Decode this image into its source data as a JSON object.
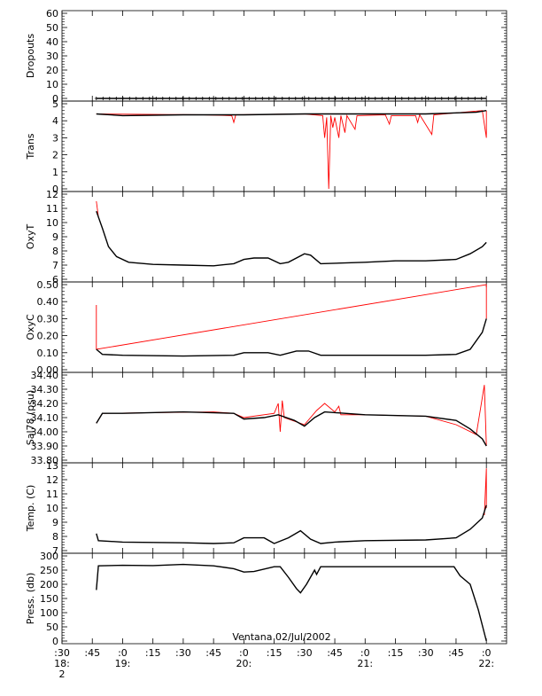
{
  "chart_data": {
    "type": "line",
    "title": "Ventana 02/Jul/2002",
    "time_axis": {
      "start": "18:30",
      "end": "22:10",
      "tick_labels": [
        {
          "t": "18:30",
          "l1": ":30",
          "l2": "18:",
          "l3": "2"
        },
        {
          "t": "18:45",
          "l1": ":45",
          "l2": "",
          "l3": ""
        },
        {
          "t": "19:00",
          "l1": ":0",
          "l2": "19:",
          "l3": ""
        },
        {
          "t": "19:15",
          "l1": ":15",
          "l2": "",
          "l3": ""
        },
        {
          "t": "19:30",
          "l1": ":30",
          "l2": "",
          "l3": ""
        },
        {
          "t": "19:45",
          "l1": ":45",
          "l2": "",
          "l3": ""
        },
        {
          "t": "20:00",
          "l1": ":0",
          "l2": "20:",
          "l3": ""
        },
        {
          "t": "20:15",
          "l1": ":15",
          "l2": "",
          "l3": ""
        },
        {
          "t": "20:30",
          "l1": ":30",
          "l2": "",
          "l3": ""
        },
        {
          "t": "20:45",
          "l1": ":45",
          "l2": "",
          "l3": ""
        },
        {
          "t": "21:00",
          "l1": ":0",
          "l2": "21:",
          "l3": ""
        },
        {
          "t": "21:15",
          "l1": ":15",
          "l2": "",
          "l3": ""
        },
        {
          "t": "21:30",
          "l1": ":30",
          "l2": "",
          "l3": ""
        },
        {
          "t": "21:45",
          "l1": ":45",
          "l2": "",
          "l3": ""
        },
        {
          "t": "22:00",
          "l1": ":0",
          "l2": "22:",
          "l3": ""
        }
      ]
    },
    "panels": [
      {
        "name": "dropouts",
        "ylabel": "Dropouts",
        "ylim": [
          0,
          60
        ],
        "ticks": [
          "0",
          "10",
          "20",
          "30",
          "40",
          "50",
          "60"
        ],
        "tick_values": [
          0,
          10,
          20,
          30,
          40,
          50,
          60
        ],
        "marker": "plus",
        "series": [
          {
            "color": "#000000",
            "points": [
              [
                "18:47",
                0
              ],
              [
                "22:00",
                0
              ]
            ]
          }
        ]
      },
      {
        "name": "trans",
        "ylabel": "Trans",
        "ylim": [
          0,
          5
        ],
        "ticks": [
          "0",
          "1",
          "2",
          "3",
          "4",
          "5"
        ],
        "tick_values": [
          0,
          1,
          2,
          3,
          4,
          5
        ],
        "series": [
          {
            "color": "#ff0000",
            "points": [
              [
                "18:47",
                4.4
              ],
              [
                "19:40",
                4.35
              ],
              [
                "19:54",
                4.3
              ],
              [
                "19:55",
                3.9
              ],
              [
                "19:56",
                4.35
              ],
              [
                "20:30",
                4.4
              ],
              [
                "20:39",
                4.3
              ],
              [
                "20:40",
                3.0
              ],
              [
                "20:41",
                4.2
              ],
              [
                "20:42",
                0.0
              ],
              [
                "20:43",
                4.3
              ],
              [
                "20:44",
                3.6
              ],
              [
                "20:45",
                4.2
              ],
              [
                "20:47",
                3.0
              ],
              [
                "20:48",
                4.3
              ],
              [
                "20:50",
                3.3
              ],
              [
                "20:51",
                4.3
              ],
              [
                "20:55",
                3.5
              ],
              [
                "20:56",
                4.3
              ],
              [
                "21:10",
                4.35
              ],
              [
                "21:12",
                3.8
              ],
              [
                "21:13",
                4.3
              ],
              [
                "21:25",
                4.3
              ],
              [
                "21:26",
                3.9
              ],
              [
                "21:27",
                4.35
              ],
              [
                "21:33",
                3.2
              ],
              [
                "21:34",
                4.35
              ],
              [
                "21:58",
                4.6
              ],
              [
                "22:00",
                3.0
              ],
              [
                "22:00",
                4.6
              ]
            ]
          },
          {
            "color": "#000000",
            "points": [
              [
                "18:47",
                4.4
              ],
              [
                "19:00",
                4.3
              ],
              [
                "19:30",
                4.35
              ],
              [
                "20:00",
                4.35
              ],
              [
                "20:30",
                4.4
              ],
              [
                "21:00",
                4.4
              ],
              [
                "21:30",
                4.4
              ],
              [
                "21:55",
                4.5
              ],
              [
                "22:00",
                4.6
              ]
            ]
          }
        ]
      },
      {
        "name": "oxyt",
        "ylabel": "OxyT",
        "ylim": [
          6,
          12
        ],
        "ticks": [
          "6",
          "7",
          "8",
          "9",
          "10",
          "11",
          "12"
        ],
        "tick_values": [
          6,
          7,
          8,
          9,
          10,
          11,
          12
        ],
        "series": [
          {
            "color": "#ff0000",
            "points": [
              [
                "18:47",
                11.5
              ],
              [
                "18:48",
                10.4
              ]
            ]
          },
          {
            "color": "#000000",
            "points": [
              [
                "18:47",
                10.8
              ],
              [
                "18:50",
                9.6
              ],
              [
                "18:53",
                8.3
              ],
              [
                "18:57",
                7.6
              ],
              [
                "19:03",
                7.2
              ],
              [
                "19:15",
                7.05
              ],
              [
                "19:30",
                7.0
              ],
              [
                "19:45",
                6.95
              ],
              [
                "19:55",
                7.1
              ],
              [
                "20:00",
                7.4
              ],
              [
                "20:05",
                7.5
              ],
              [
                "20:12",
                7.5
              ],
              [
                "20:18",
                7.1
              ],
              [
                "20:22",
                7.2
              ],
              [
                "20:30",
                7.8
              ],
              [
                "20:33",
                7.7
              ],
              [
                "20:38",
                7.1
              ],
              [
                "21:00",
                7.2
              ],
              [
                "21:15",
                7.3
              ],
              [
                "21:30",
                7.3
              ],
              [
                "21:45",
                7.4
              ],
              [
                "21:52",
                7.8
              ],
              [
                "21:58",
                8.3
              ],
              [
                "22:00",
                8.6
              ]
            ]
          }
        ]
      },
      {
        "name": "oxyc",
        "ylabel": "OxyC",
        "ylim": [
          0.0,
          0.5
        ],
        "ticks": [
          "0.00",
          "0.10",
          "0.20",
          "0.30",
          "0.40",
          "0.50"
        ],
        "tick_values": [
          0.0,
          0.1,
          0.2,
          0.3,
          0.4,
          0.5
        ],
        "series": [
          {
            "color": "#ff0000",
            "points": [
              [
                "18:47",
                0.38
              ],
              [
                "18:47",
                0.12
              ],
              [
                "22:00",
                0.5
              ],
              [
                "22:00",
                0.3
              ]
            ]
          },
          {
            "color": "#000000",
            "points": [
              [
                "18:47",
                0.12
              ],
              [
                "18:50",
                0.09
              ],
              [
                "19:00",
                0.085
              ],
              [
                "19:30",
                0.08
              ],
              [
                "19:55",
                0.085
              ],
              [
                "20:00",
                0.1
              ],
              [
                "20:12",
                0.1
              ],
              [
                "20:18",
                0.085
              ],
              [
                "20:26",
                0.11
              ],
              [
                "20:32",
                0.11
              ],
              [
                "20:38",
                0.085
              ],
              [
                "21:00",
                0.085
              ],
              [
                "21:30",
                0.085
              ],
              [
                "21:45",
                0.09
              ],
              [
                "21:52",
                0.12
              ],
              [
                "21:58",
                0.22
              ],
              [
                "22:00",
                0.3
              ]
            ]
          }
        ]
      },
      {
        "name": "sal",
        "ylabel": "Sal78 (psu)",
        "ylim": [
          33.8,
          34.4
        ],
        "ticks": [
          "33.80",
          "33.90",
          "34.00",
          "34.10",
          "34.20",
          "34.30",
          "34.40"
        ],
        "tick_values": [
          33.8,
          33.9,
          34.0,
          34.1,
          34.2,
          34.3,
          34.4
        ],
        "series": [
          {
            "color": "#ff0000",
            "points": [
              [
                "18:47",
                34.06
              ],
              [
                "18:50",
                34.13
              ],
              [
                "19:45",
                34.14
              ],
              [
                "19:55",
                34.13
              ],
              [
                "20:00",
                34.1
              ],
              [
                "20:15",
                34.13
              ],
              [
                "20:17",
                34.2
              ],
              [
                "20:18",
                34.0
              ],
              [
                "20:19",
                34.22
              ],
              [
                "20:20",
                34.1
              ],
              [
                "20:30",
                34.05
              ],
              [
                "20:36",
                34.15
              ],
              [
                "20:40",
                34.2
              ],
              [
                "20:45",
                34.14
              ],
              [
                "20:47",
                34.18
              ],
              [
                "20:48",
                34.12
              ],
              [
                "21:00",
                34.12
              ],
              [
                "21:30",
                34.11
              ],
              [
                "21:45",
                34.05
              ],
              [
                "21:55",
                33.98
              ],
              [
                "21:59",
                34.33
              ],
              [
                "22:00",
                33.9
              ]
            ]
          },
          {
            "color": "#000000",
            "points": [
              [
                "18:47",
                34.06
              ],
              [
                "18:50",
                34.13
              ],
              [
                "19:00",
                34.13
              ],
              [
                "19:30",
                34.14
              ],
              [
                "19:55",
                34.13
              ],
              [
                "20:00",
                34.09
              ],
              [
                "20:10",
                34.1
              ],
              [
                "20:17",
                34.12
              ],
              [
                "20:25",
                34.08
              ],
              [
                "20:30",
                34.04
              ],
              [
                "20:35",
                34.1
              ],
              [
                "20:40",
                34.14
              ],
              [
                "20:50",
                34.13
              ],
              [
                "21:00",
                34.12
              ],
              [
                "21:30",
                34.11
              ],
              [
                "21:45",
                34.08
              ],
              [
                "21:52",
                34.02
              ],
              [
                "21:58",
                33.95
              ],
              [
                "22:00",
                33.9
              ]
            ]
          }
        ]
      },
      {
        "name": "temp",
        "ylabel": "Temp. (C)",
        "ylim": [
          7,
          13
        ],
        "ticks": [
          "7",
          "8",
          "9",
          "10",
          "11",
          "12",
          "13"
        ],
        "tick_values": [
          7,
          8,
          9,
          10,
          11,
          12,
          13
        ],
        "series": [
          {
            "color": "#ff0000",
            "points": [
              [
                "21:59",
                9.5
              ],
              [
                "22:00",
                12.8
              ],
              [
                "22:00",
                10.0
              ]
            ]
          },
          {
            "color": "#000000",
            "points": [
              [
                "18:47",
                8.2
              ],
              [
                "18:48",
                7.7
              ],
              [
                "19:00",
                7.6
              ],
              [
                "19:30",
                7.55
              ],
              [
                "19:45",
                7.5
              ],
              [
                "19:55",
                7.55
              ],
              [
                "20:00",
                7.9
              ],
              [
                "20:10",
                7.9
              ],
              [
                "20:15",
                7.5
              ],
              [
                "20:22",
                7.9
              ],
              [
                "20:28",
                8.4
              ],
              [
                "20:33",
                7.8
              ],
              [
                "20:38",
                7.5
              ],
              [
                "20:45",
                7.6
              ],
              [
                "21:00",
                7.7
              ],
              [
                "21:30",
                7.75
              ],
              [
                "21:45",
                7.9
              ],
              [
                "21:52",
                8.5
              ],
              [
                "21:58",
                9.3
              ],
              [
                "22:00",
                10.2
              ]
            ]
          }
        ]
      },
      {
        "name": "press",
        "ylabel": "Press. (db)",
        "ylim": [
          0,
          300
        ],
        "ticks": [
          "0",
          "50",
          "100",
          "150",
          "200",
          "250",
          "300"
        ],
        "tick_values": [
          0,
          50,
          100,
          150,
          200,
          250,
          300
        ],
        "series": [
          {
            "color": "#000000",
            "points": [
              [
                "18:47",
                180
              ],
              [
                "18:48",
                265
              ],
              [
                "19:00",
                267
              ],
              [
                "19:15",
                266
              ],
              [
                "19:30",
                270
              ],
              [
                "19:45",
                265
              ],
              [
                "19:55",
                255
              ],
              [
                "20:00",
                243
              ],
              [
                "20:05",
                245
              ],
              [
                "20:15",
                262
              ],
              [
                "20:18",
                262
              ],
              [
                "20:22",
                225
              ],
              [
                "20:26",
                185
              ],
              [
                "20:28",
                170
              ],
              [
                "20:31",
                200
              ],
              [
                "20:35",
                250
              ],
              [
                "20:36",
                235
              ],
              [
                "20:38",
                262
              ],
              [
                "21:00",
                262
              ],
              [
                "21:30",
                262
              ],
              [
                "21:44",
                262
              ],
              [
                "21:47",
                230
              ],
              [
                "21:52",
                200
              ],
              [
                "21:56",
                110
              ],
              [
                "22:00",
                0
              ]
            ]
          }
        ]
      }
    ]
  }
}
